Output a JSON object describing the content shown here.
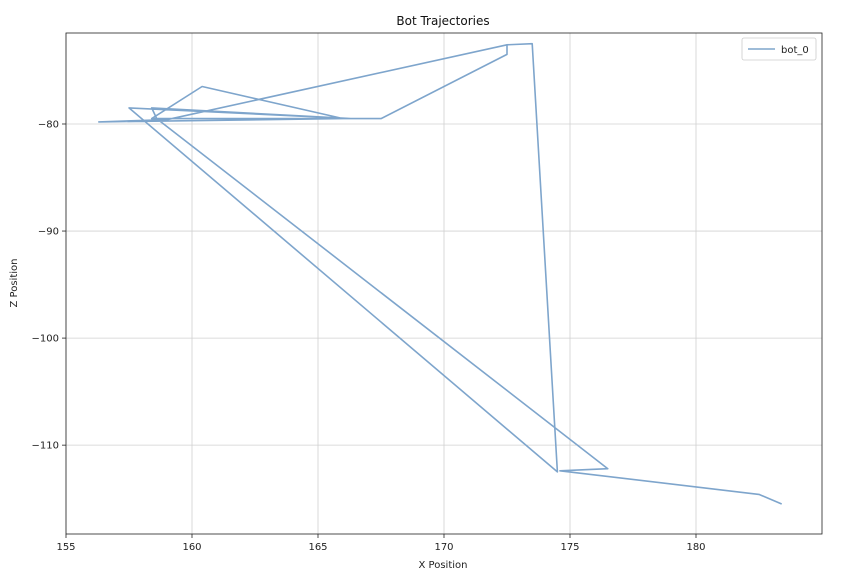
{
  "chart_data": {
    "type": "line",
    "title": "Bot Trajectories",
    "xlabel": "X Position",
    "ylabel": "Z Position",
    "xlim": [
      155,
      185
    ],
    "ylim": [
      -118.3,
      -71.5
    ],
    "xticks": [
      155,
      160,
      165,
      170,
      175,
      180
    ],
    "yticks": [
      -80,
      -90,
      -100,
      -110
    ],
    "grid": true,
    "legend": "top-right",
    "series": [
      {
        "name": "bot_0",
        "color": "#7ea5cc",
        "x": [
          183.4,
          182.5,
          174.6,
          176.5,
          158.6,
          158.4,
          166.3,
          157.5,
          174.5,
          173.5,
          172.5,
          172.5,
          167.5,
          158.4,
          160.4,
          166.0,
          156.3,
          159.0,
          172.5
        ],
        "y": [
          -115.5,
          -114.6,
          -112.4,
          -112.2,
          -79.5,
          -78.5,
          -79.5,
          -78.5,
          -112.5,
          -72.5,
          -72.6,
          -73.5,
          -79.5,
          -79.5,
          -76.5,
          -79.5,
          -79.8,
          -79.6,
          -72.6
        ]
      }
    ]
  }
}
